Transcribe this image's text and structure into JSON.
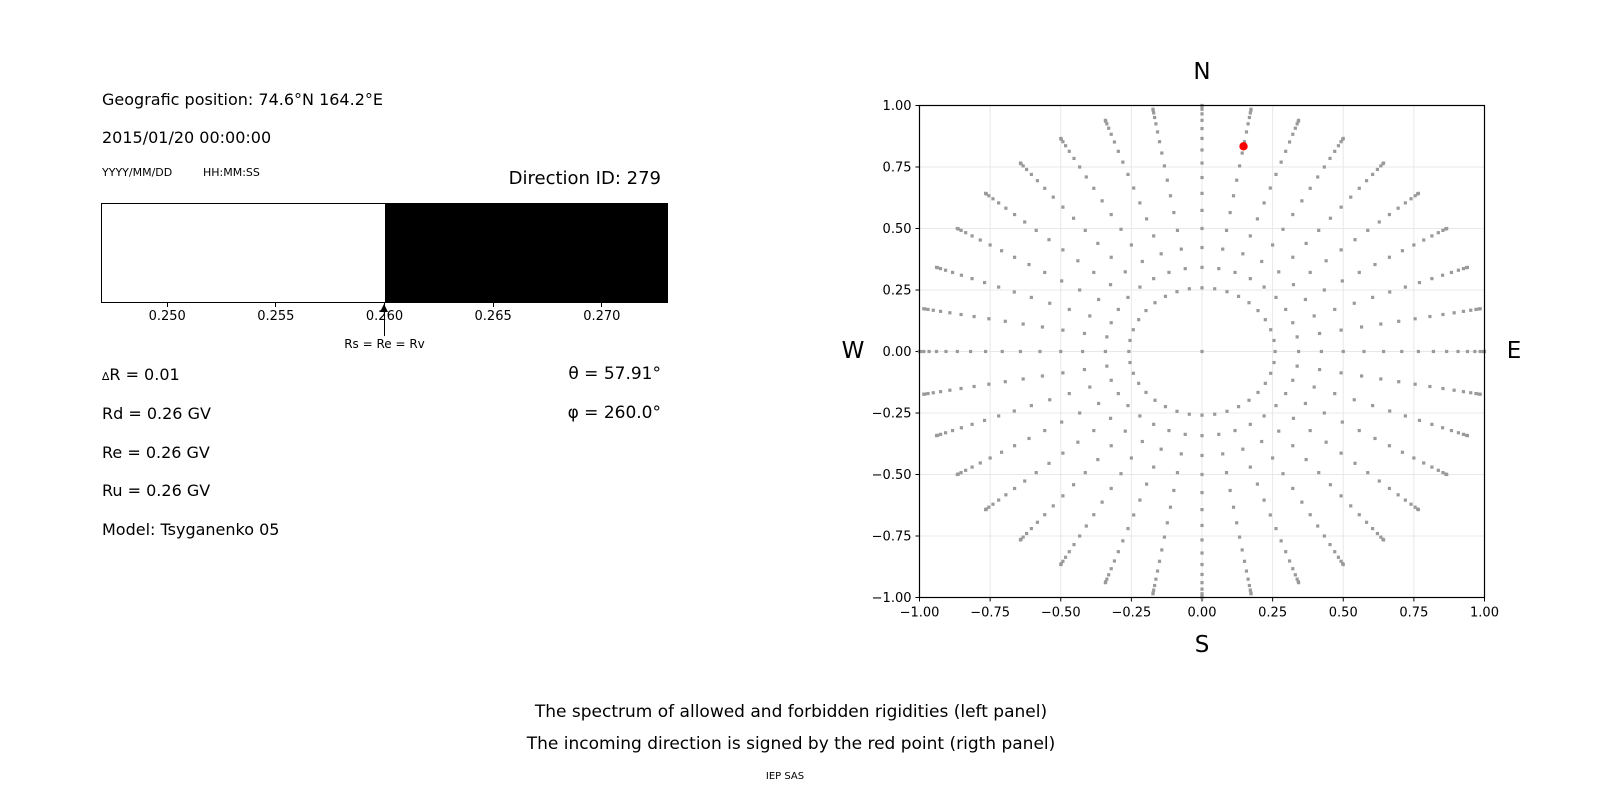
{
  "header": {
    "geo_position": "Geografic position: 74.6°N 164.2°E",
    "datetime": "2015/01/20 00:00:00",
    "date_format_hint": "YYYY/MM/DD",
    "time_format_hint": "HH:MM:SS",
    "direction_id": "Direction ID: 279"
  },
  "spectrum_panel": {
    "annotation_label": "Rs = Re = Rv",
    "params_left": [
      {
        "symbol": "∆",
        "text": "R = 0.01"
      },
      {
        "symbol": "",
        "text": "Rd = 0.26 GV"
      },
      {
        "symbol": "",
        "text": "Re = 0.26 GV"
      },
      {
        "symbol": "",
        "text": "Ru = 0.26 GV"
      },
      {
        "symbol": "",
        "text": "Model: Tsyganenko 05"
      }
    ],
    "params_right": [
      {
        "text": "θ = 57.91°"
      },
      {
        "text": "φ = 260.0°"
      }
    ]
  },
  "captions": {
    "line1": "The spectrum of allowed and forbidden rigidities (left panel)",
    "line2": "The incoming direction is signed by the red point (rigth panel)",
    "credit": "IEP SAS"
  },
  "chart_data": [
    {
      "id": "rigidity-spectrum",
      "type": "area",
      "title": "",
      "xlabel": "",
      "xlim": [
        0.247,
        0.273
      ],
      "x_ticks": [
        0.25,
        0.255,
        0.26,
        0.265,
        0.27
      ],
      "x_tick_labels": [
        "0.250",
        "0.255",
        "0.260",
        "0.265",
        "0.270"
      ],
      "regions": [
        {
          "name": "allowed",
          "from": 0.247,
          "to": 0.26,
          "color": "#ffffff"
        },
        {
          "name": "forbidden",
          "from": 0.26,
          "to": 0.273,
          "color": "#000000"
        }
      ],
      "annotation": {
        "text": "Rs = Re = Rv",
        "x": 0.26
      },
      "grid": false
    },
    {
      "id": "arrival-direction-map",
      "type": "scatter",
      "xlim": [
        -1,
        1
      ],
      "ylim": [
        -1,
        1
      ],
      "tick_values": [
        -1.0,
        -0.75,
        -0.5,
        -0.25,
        0.0,
        0.25,
        0.5,
        0.75,
        1.0
      ],
      "x_tick_labels": [
        "−1.00",
        "−0.75",
        "−0.50",
        "−0.25",
        "0.00",
        "0.25",
        "0.50",
        "0.75",
        "1.00"
      ],
      "y_tick_labels": [
        "1.00",
        "0.75",
        "0.50",
        "0.25",
        "0.00",
        "−0.25",
        "−0.50",
        "−0.75",
        "−1.00"
      ],
      "grid": true,
      "grid_color": "#e8e8e8",
      "compass": {
        "top": "N",
        "bottom": "S",
        "left": "W",
        "right": "E"
      },
      "dot_color": "#9a9a9a",
      "dot_marker": "square",
      "spokes": {
        "azimuth_deg": [
          0,
          10,
          20,
          30,
          40,
          50,
          60,
          70,
          80,
          90,
          100,
          110,
          120,
          130,
          140,
          150,
          160,
          170,
          180,
          190,
          200,
          210,
          220,
          230,
          240,
          250,
          260,
          270,
          280,
          290,
          300,
          310,
          320,
          330,
          340,
          350
        ],
        "zenith_deg": [
          15,
          20,
          25,
          30,
          35,
          40,
          45,
          50,
          55,
          60,
          65,
          70,
          75,
          80,
          85,
          90
        ],
        "radius_rule": "r = sin(zenith); x = r·sin(azimuth); y = r·cos(azimuth)"
      },
      "origin_dot": true,
      "red_point": {
        "x": 0.147,
        "y": 0.834,
        "color": "#ff0000",
        "note": "incoming direction"
      }
    }
  ]
}
